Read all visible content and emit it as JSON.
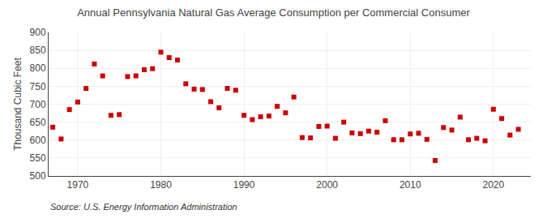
{
  "chart_data": {
    "type": "scatter",
    "title": "Annual Pennsylvania Natural Gas Average Consumption per Commercial Consumer",
    "y_label": "Thousand Cubic Feet",
    "annotations": [
      "Source: U.S. Energy Information Administration"
    ],
    "x": [
      1967,
      1968,
      1969,
      1970,
      1971,
      1972,
      1973,
      1974,
      1975,
      1976,
      1977,
      1978,
      1979,
      1980,
      1981,
      1982,
      1983,
      1984,
      1985,
      1986,
      1987,
      1988,
      1989,
      1990,
      1991,
      1992,
      1993,
      1994,
      1995,
      1996,
      1997,
      1998,
      1999,
      2000,
      2001,
      2002,
      2003,
      2004,
      2005,
      2006,
      2007,
      2008,
      2009,
      2010,
      2011,
      2012,
      2013,
      2014,
      2015,
      2016,
      2017,
      2018,
      2019,
      2020,
      2021,
      2022,
      2023
    ],
    "values": [
      636,
      603,
      685,
      706,
      744,
      812,
      779,
      669,
      671,
      777,
      779,
      796,
      799,
      845,
      830,
      823,
      757,
      742,
      741,
      707,
      690,
      744,
      739,
      669,
      657,
      665,
      667,
      694,
      676,
      720,
      607,
      606,
      638,
      639,
      605,
      650,
      620,
      618,
      625,
      622,
      654,
      601,
      601,
      617,
      619,
      602,
      543,
      635,
      628,
      664,
      601,
      605,
      598,
      686,
      660,
      614,
      630
    ],
    "color": "#cc0000",
    "marker": "square",
    "xlim": [
      1966.5,
      2024.5
    ],
    "xticks": [
      1970,
      1980,
      1990,
      2000,
      2010,
      2020
    ],
    "ylim": [
      500,
      900
    ],
    "yticks": [
      500,
      550,
      600,
      650,
      700,
      750,
      800,
      850,
      900
    ],
    "grid": true
  }
}
